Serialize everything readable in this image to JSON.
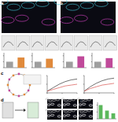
{
  "panels": [
    {
      "label": "a"
    },
    {
      "label": "b"
    },
    {
      "label": "c"
    },
    {
      "label": "d"
    },
    {
      "label": "e"
    }
  ],
  "chart_data": [
    {
      "type": "bar",
      "categories": [
        null,
        null
      ],
      "values": [
        1.0,
        1.7
      ],
      "colors": [
        "#9e9e9e",
        "#e08a3c"
      ],
      "ylim": [
        0,
        2.5
      ],
      "yticks": [
        0,
        1,
        2
      ],
      "tick_labels": false
    },
    {
      "type": "bar",
      "categories": [
        null,
        null
      ],
      "values": [
        1.0,
        1.5
      ],
      "colors": [
        "#9e9e9e",
        "#e08a3c"
      ],
      "ylim": [
        0,
        2.5
      ],
      "yticks": [
        0,
        1,
        2
      ],
      "tick_labels": false
    },
    {
      "type": "bar",
      "categories": [
        null,
        null
      ],
      "values": [
        1.0,
        1.9
      ],
      "colors": [
        "#9e9e9e",
        "#c04a9a"
      ],
      "ylim": [
        0,
        2.5
      ],
      "yticks": [
        0,
        1,
        2
      ],
      "tick_labels": false
    },
    {
      "type": "bar",
      "categories": [
        null,
        null
      ],
      "values": [
        1.0,
        1.6
      ],
      "colors": [
        "#9e9e9e",
        "#c04a9a"
      ],
      "ylim": [
        0,
        2.5
      ],
      "yticks": [
        0,
        1,
        2
      ],
      "tick_labels": false
    },
    {
      "type": "line",
      "x": [
        0,
        2,
        4,
        6,
        8,
        10
      ],
      "series": [
        {
          "color": "#333333",
          "values": [
            0.1,
            0.3,
            0.5,
            0.65,
            0.75,
            0.8
          ]
        },
        {
          "color": "#d9534f",
          "values": [
            0.1,
            0.2,
            0.3,
            0.4,
            0.45,
            0.5
          ]
        }
      ],
      "xlim": [
        0,
        10
      ],
      "ylim": [
        0,
        1
      ],
      "yticks": [
        0,
        0.5,
        1
      ],
      "xticks": [
        0,
        5,
        10
      ],
      "tick_labels": false
    },
    {
      "type": "line",
      "x": [
        0,
        2,
        4,
        6,
        8,
        10
      ],
      "series": [
        {
          "color": "#333333",
          "values": [
            0.1,
            0.35,
            0.55,
            0.7,
            0.8,
            0.85
          ]
        },
        {
          "color": "#d9534f",
          "values": [
            0.1,
            0.25,
            0.35,
            0.45,
            0.5,
            0.55
          ]
        }
      ],
      "xlim": [
        0,
        10
      ],
      "ylim": [
        0,
        1
      ],
      "yticks": [
        0,
        0.5,
        1
      ],
      "xticks": [
        0,
        5,
        10
      ],
      "tick_labels": false
    },
    {
      "type": "bar",
      "categories": [
        null,
        null,
        null
      ],
      "values": [
        1.0,
        0.6,
        0.4
      ],
      "color": "#5cb85c",
      "ylim": [
        0,
        1.2
      ],
      "yticks": [
        0,
        0.5,
        1
      ],
      "tick_labels": false
    }
  ]
}
